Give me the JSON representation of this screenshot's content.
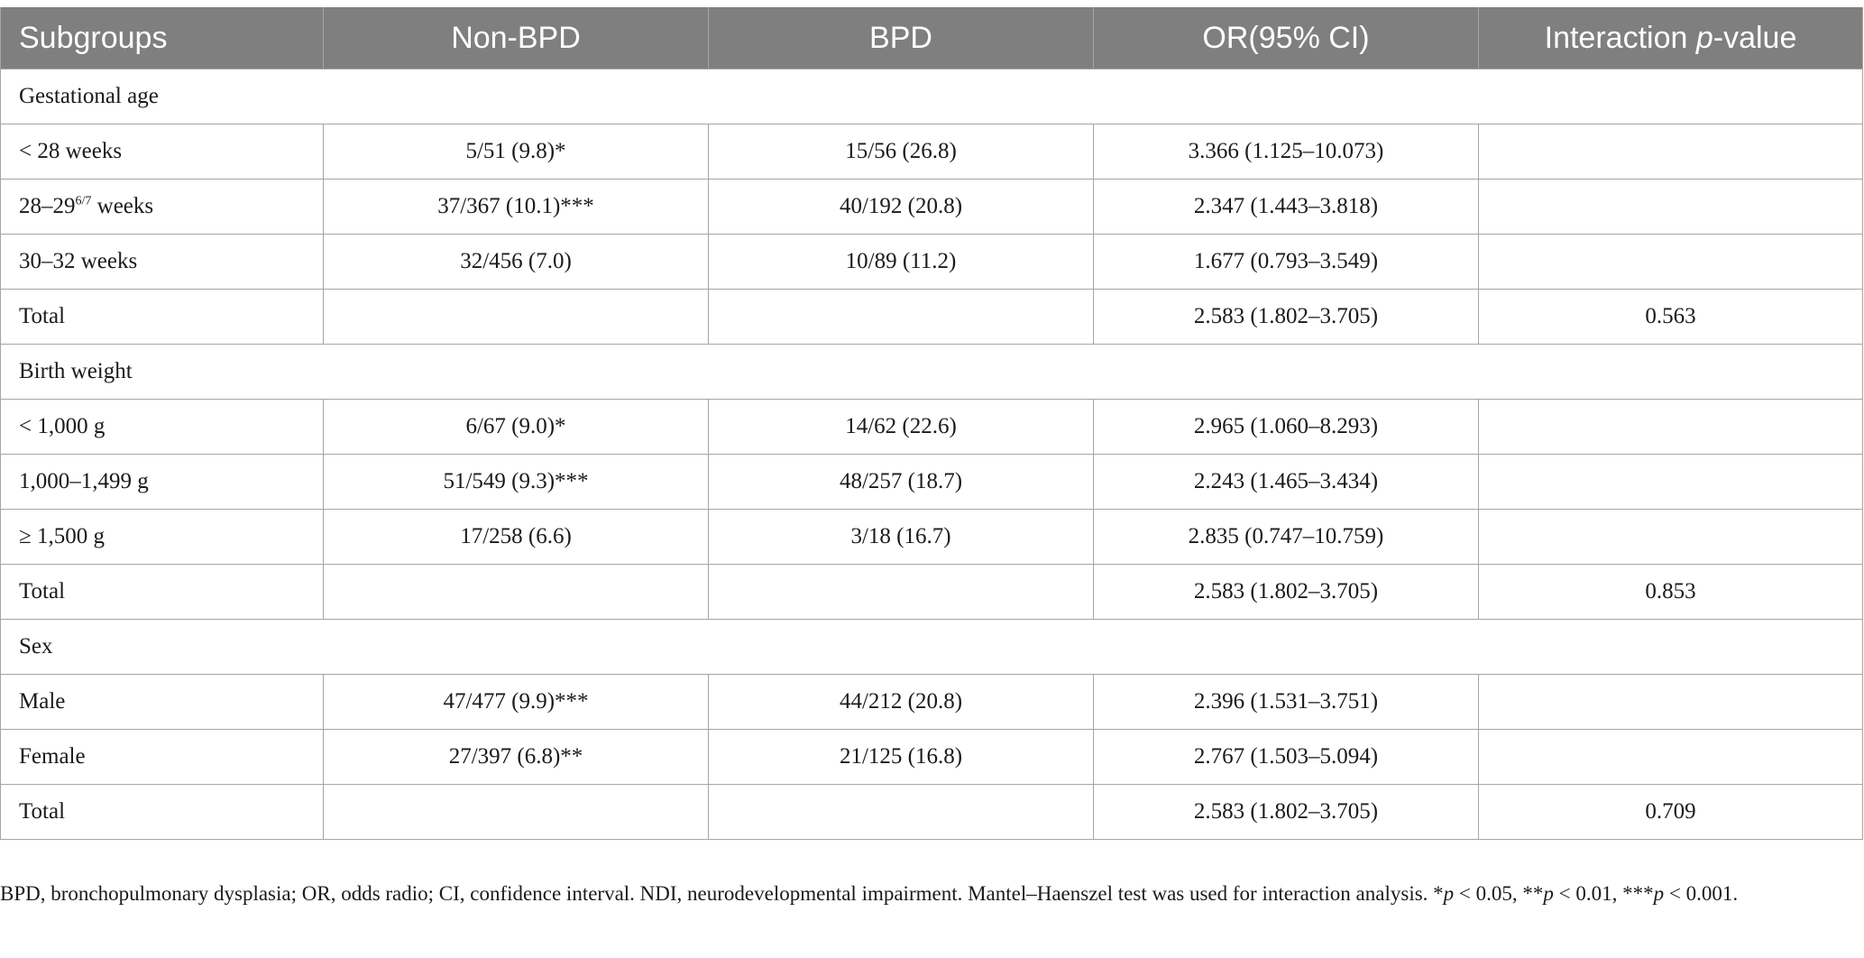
{
  "table": {
    "headers": [
      "Subgroups",
      "Non-BPD",
      "BPD",
      "OR(95% CI)",
      "Interaction p-value"
    ],
    "header_interaction_prefix": "Interaction ",
    "header_interaction_italic": "p",
    "header_interaction_suffix": "-value",
    "sections": [
      {
        "title": "Gestational age",
        "rows": [
          {
            "label": "< 28 weeks",
            "non_bpd": "5/51 (9.8)*",
            "bpd": "15/56 (26.8)",
            "or": "3.366 (1.125–10.073)",
            "p": ""
          },
          {
            "label_pre": "28–29",
            "label_sup": "6/7",
            "label_post": " weeks",
            "non_bpd": "37/367 (10.1)***",
            "bpd": "40/192 (20.8)",
            "or": "2.347 (1.443–3.818)",
            "p": ""
          },
          {
            "label": "30–32 weeks",
            "non_bpd": "32/456 (7.0)",
            "bpd": "10/89 (11.2)",
            "or": "1.677 (0.793–3.549)",
            "p": ""
          },
          {
            "label": "Total",
            "non_bpd": "",
            "bpd": "",
            "or": "2.583 (1.802–3.705)",
            "p": "0.563"
          }
        ]
      },
      {
        "title": "Birth weight",
        "rows": [
          {
            "label": "< 1,000 g",
            "non_bpd": "6/67 (9.0)*",
            "bpd": "14/62 (22.6)",
            "or": "2.965 (1.060–8.293)",
            "p": ""
          },
          {
            "label": "1,000–1,499 g",
            "non_bpd": "51/549 (9.3)***",
            "bpd": "48/257 (18.7)",
            "or": "2.243 (1.465–3.434)",
            "p": ""
          },
          {
            "label": "≥ 1,500 g",
            "non_bpd": "17/258 (6.6)",
            "bpd": "3/18 (16.7)",
            "or": "2.835 (0.747–10.759)",
            "p": ""
          },
          {
            "label": "Total",
            "non_bpd": "",
            "bpd": "",
            "or": "2.583 (1.802–3.705)",
            "p": "0.853"
          }
        ]
      },
      {
        "title": "Sex",
        "rows": [
          {
            "label": "Male",
            "non_bpd": "47/477 (9.9)***",
            "bpd": "44/212 (20.8)",
            "or": "2.396 (1.531–3.751)",
            "p": ""
          },
          {
            "label": "Female",
            "non_bpd": "27/397 (6.8)**",
            "bpd": "21/125 (16.8)",
            "or": "2.767 (1.503–5.094)",
            "p": ""
          },
          {
            "label": "Total",
            "non_bpd": "",
            "bpd": "",
            "or": "2.583 (1.802–3.705)",
            "p": "0.709"
          }
        ]
      }
    ]
  },
  "footnote": {
    "text": "BPD, bronchopulmonary dysplasia; OR, odds radio; CI, confidence interval. NDI, neurodevelopmental impairment. Mantel–Haenszel test was used for interaction analysis. *",
    "p1": "p",
    "t1": " < 0.05, **",
    "p2": "p",
    "t2": " < 0.01, ***",
    "p3": "p",
    "t3": " < 0.001."
  },
  "colors": {
    "header_bg": "#7f7f7f",
    "header_text": "#ffffff",
    "grid": "#a5a5a5"
  }
}
